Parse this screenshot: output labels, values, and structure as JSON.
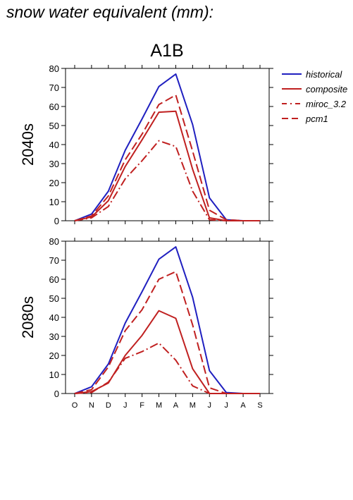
{
  "heading": "snow water equivalent (mm):",
  "scenario": "A1B",
  "colors": {
    "historical": "#2020c0",
    "model": "#c02020"
  },
  "legend": [
    {
      "label": "historical",
      "series": "historical"
    },
    {
      "label": "composite",
      "series": "composite"
    },
    {
      "label": "miroc_3.2",
      "series": "miroc_3.2"
    },
    {
      "label": "pcm1",
      "series": "pcm1"
    }
  ],
  "chart_data": [
    {
      "type": "line",
      "title": "A1B",
      "ylabel": "2040s",
      "categories": [
        "O",
        "N",
        "D",
        "J",
        "F",
        "M",
        "A",
        "M",
        "J",
        "J",
        "A",
        "S"
      ],
      "ylim": [
        0,
        80
      ],
      "yticks": [
        0,
        10,
        20,
        30,
        40,
        50,
        60,
        70,
        80
      ],
      "series": [
        {
          "name": "historical",
          "values": [
            0,
            3.5,
            15.5,
            37,
            53.5,
            70.5,
            77,
            50.5,
            12,
            0.5,
            0,
            0
          ]
        },
        {
          "name": "composite",
          "values": [
            0,
            2,
            10.5,
            28.5,
            42.5,
            57,
            57.5,
            27,
            1.5,
            0,
            0,
            0
          ]
        },
        {
          "name": "miroc_3.2",
          "values": [
            0,
            1.5,
            7.5,
            22,
            31.5,
            42,
            39,
            15.5,
            0.5,
            0,
            0,
            0
          ]
        },
        {
          "name": "pcm1",
          "values": [
            0,
            2.5,
            13,
            32,
            45.5,
            61,
            66,
            36.5,
            5.5,
            0.5,
            0,
            0
          ]
        }
      ]
    },
    {
      "type": "line",
      "title": "",
      "ylabel": "2080s",
      "categories": [
        "O",
        "N",
        "D",
        "J",
        "F",
        "M",
        "A",
        "M",
        "J",
        "J",
        "A",
        "S"
      ],
      "ylim": [
        0,
        80
      ],
      "yticks": [
        0,
        10,
        20,
        30,
        40,
        50,
        60,
        70,
        80
      ],
      "series": [
        {
          "name": "historical",
          "values": [
            0,
            3.5,
            15.5,
            37,
            53.5,
            70.5,
            77,
            50.5,
            12,
            0.5,
            0,
            0
          ]
        },
        {
          "name": "composite",
          "values": [
            0,
            1,
            5.5,
            20,
            30.5,
            43.5,
            39.5,
            13,
            0,
            0,
            0,
            0
          ]
        },
        {
          "name": "miroc_3.2",
          "values": [
            0,
            0.5,
            6,
            18.5,
            22,
            26.5,
            17.5,
            4,
            0,
            0,
            0,
            0
          ]
        },
        {
          "name": "pcm1",
          "values": [
            0,
            2,
            14,
            33,
            44,
            60,
            64,
            36,
            3,
            0,
            0,
            0
          ]
        }
      ]
    }
  ]
}
